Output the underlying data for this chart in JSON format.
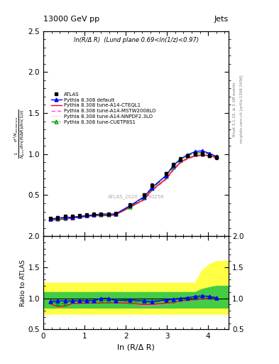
{
  "title_left": "13000 GeV pp",
  "title_right": "Jets",
  "annotation": "ln(R/Δ R)  (Lund plane 0.69<ln(1/z)<0.97)",
  "watermark": "ATLAS_2020_I1790256",
  "right_label_top": "Rivet 3.1.10, ≥ 3.1M events",
  "right_label_bot": "mcplots.cern.ch [arXiv:1306.3436]",
  "xlabel": "ln (R/Δ R)",
  "ylabel": "$\\frac{1}{N_{jets}}\\frac{d^2 N_{emissions}}{d\\ln(R/\\Delta R) d\\ln(1/z)}$",
  "ylabel_ratio": "Ratio to ATLAS",
  "ylim_main": [
    0.0,
    2.5
  ],
  "ylim_ratio": [
    0.5,
    2.0
  ],
  "yticks_main": [
    0.5,
    1.0,
    1.5,
    2.0,
    2.5
  ],
  "yticks_ratio": [
    0.5,
    1.0,
    1.5,
    2.0
  ],
  "xlim": [
    0.0,
    4.5
  ],
  "xticks": [
    0,
    1,
    2,
    3,
    4
  ],
  "x_data": [
    0.18,
    0.35,
    0.53,
    0.7,
    0.88,
    1.05,
    1.23,
    1.4,
    1.58,
    1.75,
    2.1,
    2.45,
    2.63,
    2.98,
    3.15,
    3.33,
    3.5,
    3.68,
    3.85,
    4.03,
    4.2
  ],
  "atlas_y": [
    0.22,
    0.23,
    0.24,
    0.24,
    0.25,
    0.26,
    0.27,
    0.27,
    0.27,
    0.28,
    0.38,
    0.5,
    0.62,
    0.76,
    0.87,
    0.94,
    0.98,
    1.0,
    1.0,
    0.98,
    0.96
  ],
  "atlas_yerr": [
    0.01,
    0.01,
    0.01,
    0.01,
    0.01,
    0.01,
    0.01,
    0.01,
    0.01,
    0.01,
    0.02,
    0.02,
    0.02,
    0.02,
    0.02,
    0.02,
    0.02,
    0.02,
    0.02,
    0.02,
    0.02
  ],
  "pythia_default_y": [
    0.21,
    0.22,
    0.23,
    0.23,
    0.24,
    0.25,
    0.26,
    0.27,
    0.27,
    0.27,
    0.37,
    0.48,
    0.59,
    0.74,
    0.86,
    0.94,
    0.99,
    1.03,
    1.04,
    1.01,
    0.97
  ],
  "pythia_cteq_y": [
    0.2,
    0.2,
    0.21,
    0.22,
    0.23,
    0.24,
    0.25,
    0.25,
    0.25,
    0.26,
    0.35,
    0.45,
    0.56,
    0.7,
    0.81,
    0.9,
    0.95,
    0.98,
    0.99,
    0.98,
    0.96
  ],
  "pythia_mstw_y": [
    0.2,
    0.2,
    0.21,
    0.22,
    0.23,
    0.24,
    0.25,
    0.25,
    0.25,
    0.26,
    0.35,
    0.44,
    0.55,
    0.69,
    0.8,
    0.89,
    0.94,
    0.97,
    0.98,
    0.97,
    0.96
  ],
  "pythia_nnpdf_y": [
    0.2,
    0.2,
    0.21,
    0.22,
    0.23,
    0.24,
    0.25,
    0.25,
    0.25,
    0.26,
    0.35,
    0.44,
    0.55,
    0.69,
    0.8,
    0.89,
    0.94,
    0.97,
    0.98,
    0.97,
    0.96
  ],
  "pythia_cuetp_y": [
    0.21,
    0.21,
    0.22,
    0.23,
    0.24,
    0.25,
    0.26,
    0.26,
    0.26,
    0.27,
    0.36,
    0.47,
    0.58,
    0.73,
    0.84,
    0.93,
    0.98,
    1.01,
    1.02,
    1.0,
    0.97
  ],
  "band_x": [
    0.0,
    0.18,
    0.35,
    0.53,
    0.7,
    0.88,
    1.05,
    1.23,
    1.4,
    1.58,
    1.75,
    2.1,
    2.45,
    2.63,
    2.98,
    3.15,
    3.33,
    3.5,
    3.68,
    3.85,
    4.03,
    4.2,
    4.5
  ],
  "band_yellow_lo": [
    0.75,
    0.75,
    0.75,
    0.75,
    0.75,
    0.75,
    0.75,
    0.75,
    0.75,
    0.75,
    0.75,
    0.75,
    0.75,
    0.75,
    0.75,
    0.75,
    0.75,
    0.75,
    0.75,
    0.75,
    0.75,
    0.75,
    0.75
  ],
  "band_yellow_hi": [
    1.25,
    1.25,
    1.25,
    1.25,
    1.25,
    1.25,
    1.25,
    1.25,
    1.25,
    1.25,
    1.25,
    1.25,
    1.25,
    1.25,
    1.25,
    1.25,
    1.25,
    1.25,
    1.25,
    1.45,
    1.55,
    1.6,
    1.6
  ],
  "band_green_lo": [
    0.85,
    0.85,
    0.85,
    0.85,
    0.85,
    0.85,
    0.85,
    0.85,
    0.85,
    0.85,
    0.85,
    0.85,
    0.85,
    0.85,
    0.85,
    0.85,
    0.85,
    0.85,
    0.85,
    0.85,
    0.85,
    0.85,
    0.85
  ],
  "band_green_hi": [
    1.1,
    1.1,
    1.1,
    1.1,
    1.1,
    1.1,
    1.1,
    1.1,
    1.1,
    1.1,
    1.1,
    1.1,
    1.1,
    1.1,
    1.1,
    1.1,
    1.1,
    1.1,
    1.1,
    1.15,
    1.18,
    1.2,
    1.2
  ],
  "color_atlas": "black",
  "color_default": "#0000ff",
  "color_cteq": "#ff0000",
  "color_mstw": "#ff44ff",
  "color_nnpdf": "#ff99dd",
  "color_cuetp": "#009900",
  "color_band_yellow": "#ffff44",
  "color_band_green": "#44cc44"
}
